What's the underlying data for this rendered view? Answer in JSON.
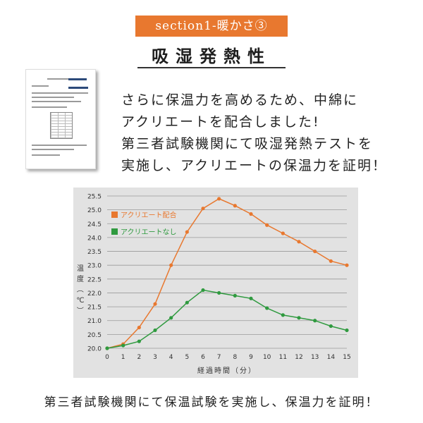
{
  "header": {
    "section_label": "section1-暖かさ③",
    "title": "吸湿発熱性"
  },
  "intro_lines": [
    "さらに保温力を高めるため、中綿に",
    "アクリエートを配合しました!",
    "第三者試験機関にて吸湿発熱テストを",
    "実施し、アクリエートの保温力を証明！"
  ],
  "chart_data": {
    "type": "line",
    "xlabel": "経過時間（分）",
    "ylabel": "温度（℃）",
    "x": [
      0,
      1,
      2,
      3,
      4,
      5,
      6,
      7,
      8,
      9,
      10,
      11,
      12,
      13,
      14,
      15
    ],
    "xlim": [
      0,
      15
    ],
    "ylim": [
      20.0,
      25.5
    ],
    "y_ticks": [
      "20.0",
      "20.5",
      "21.0",
      "21.5",
      "22.0",
      "22.5",
      "23.0",
      "23.5",
      "24.0",
      "24.5",
      "25.0",
      "25.5"
    ],
    "grid": true,
    "legend_position": "top-left",
    "series": [
      {
        "name": "アクリエート配合",
        "color": "#e8782f",
        "values": [
          20.0,
          20.15,
          20.75,
          21.6,
          23.0,
          24.2,
          25.05,
          25.4,
          25.15,
          24.85,
          24.45,
          24.15,
          23.85,
          23.5,
          23.15,
          23.0
        ]
      },
      {
        "name": "アクリエートなし",
        "color": "#2f9a3f",
        "values": [
          20.0,
          20.1,
          20.25,
          20.65,
          21.1,
          21.65,
          22.1,
          22.0,
          21.9,
          21.8,
          21.45,
          21.2,
          21.1,
          21.0,
          20.8,
          20.65
        ]
      }
    ]
  },
  "caption": "第三者試験機関にて保温試験を実施し、保温力を証明！"
}
